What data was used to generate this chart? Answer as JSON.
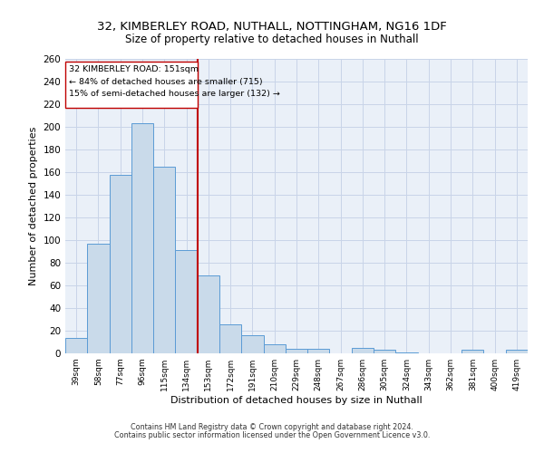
{
  "title1": "32, KIMBERLEY ROAD, NUTHALL, NOTTINGHAM, NG16 1DF",
  "title2": "Size of property relative to detached houses in Nuthall",
  "xlabel": "Distribution of detached houses by size in Nuthall",
  "ylabel": "Number of detached properties",
  "categories": [
    "39sqm",
    "58sqm",
    "77sqm",
    "96sqm",
    "115sqm",
    "134sqm",
    "153sqm",
    "172sqm",
    "191sqm",
    "210sqm",
    "229sqm",
    "248sqm",
    "267sqm",
    "286sqm",
    "305sqm",
    "324sqm",
    "343sqm",
    "362sqm",
    "381sqm",
    "400sqm",
    "419sqm"
  ],
  "values": [
    14,
    97,
    158,
    203,
    165,
    91,
    69,
    26,
    16,
    8,
    4,
    4,
    0,
    5,
    3,
    1,
    0,
    0,
    3,
    0,
    3
  ],
  "bar_color": "#c9daea",
  "bar_edge_color": "#5b9bd5",
  "vline_color": "#c00000",
  "annotation_box_color": "#c00000",
  "ylim": [
    0,
    260
  ],
  "yticks": [
    0,
    20,
    40,
    60,
    80,
    100,
    120,
    140,
    160,
    180,
    200,
    220,
    240,
    260
  ],
  "footer1": "Contains HM Land Registry data © Crown copyright and database right 2024.",
  "footer2": "Contains public sector information licensed under the Open Government Licence v3.0.",
  "grid_color": "#c8d4e8",
  "bg_color": "#eaf0f8",
  "title1_fontsize": 9.5,
  "title2_fontsize": 8.5,
  "vline_pos": 5.5
}
